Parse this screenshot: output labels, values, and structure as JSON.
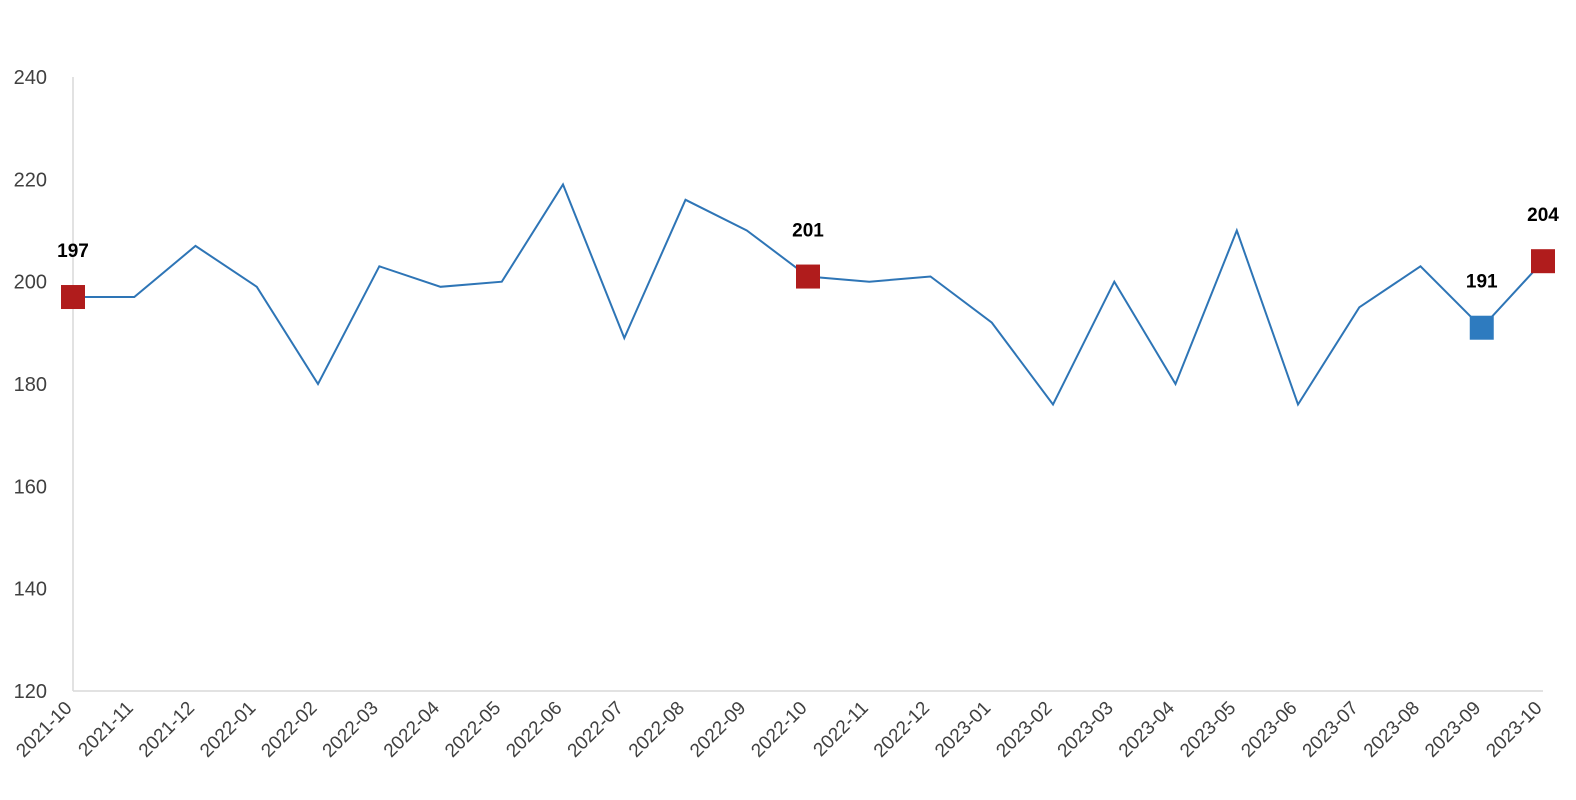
{
  "chart_data": {
    "type": "line",
    "categories": [
      "2021-10",
      "2021-11",
      "2021-12",
      "2022-01",
      "2022-02",
      "2022-03",
      "2022-04",
      "2022-05",
      "2022-06",
      "2022-07",
      "2022-08",
      "2022-09",
      "2022-10",
      "2022-11",
      "2022-12",
      "2023-01",
      "2023-02",
      "2023-03",
      "2023-04",
      "2023-05",
      "2023-06",
      "2023-07",
      "2023-08",
      "2023-09",
      "2023-10"
    ],
    "series": [
      {
        "values": [
          197,
          197,
          207,
          199,
          180,
          203,
          199,
          200,
          219,
          189,
          216,
          210,
          201,
          200,
          201,
          192,
          176,
          200,
          180,
          210,
          176,
          195,
          203,
          191,
          204
        ]
      }
    ],
    "ylim": [
      120,
      240
    ],
    "yticks": [
      120,
      140,
      160,
      180,
      200,
      220,
      240
    ],
    "grid": false,
    "highlights": [
      {
        "index": 0,
        "label": "197",
        "color": "#B01C1C"
      },
      {
        "index": 12,
        "label": "201",
        "color": "#B01C1C"
      },
      {
        "index": 23,
        "label": "191",
        "color": "#2E7BBF"
      },
      {
        "index": 24,
        "label": "204",
        "color": "#B01C1C"
      }
    ],
    "line_color": "#2E75B6",
    "axis_color": "#D9D9D9"
  }
}
